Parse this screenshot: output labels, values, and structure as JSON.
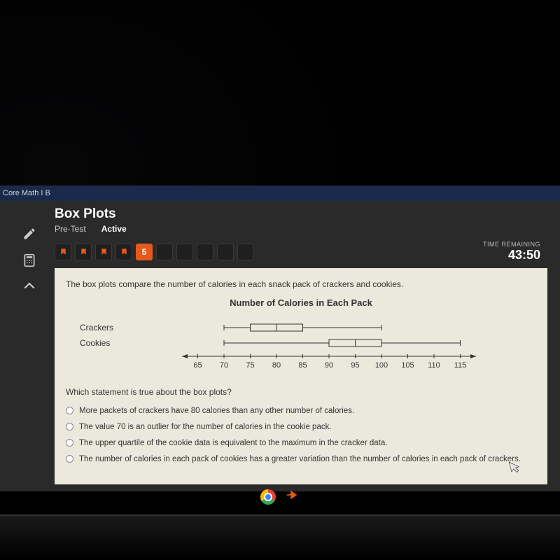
{
  "course": {
    "name": "Core Math I B"
  },
  "header": {
    "title": "Box Plots",
    "mode": "Pre-Test",
    "status": "Active"
  },
  "timer": {
    "label": "TIME REMAINING",
    "value": "43:50"
  },
  "progress": {
    "flagged": [
      1,
      2,
      3,
      4
    ],
    "current_index": 5,
    "total_visible": 10,
    "current_label": "5"
  },
  "question": {
    "intro": "The box plots compare the number of calories in each snack pack of crackers and cookies.",
    "chart_title": "Number of Calories in Each Pack",
    "prompt": "Which statement is true about the box plots?",
    "options": [
      "More packets of crackers have 80 calories than any other number of calories.",
      "The value 70 is an outlier for the number of calories in the cookie pack.",
      "The upper quartile of the cookie data is equivalent to the maximum in the cracker data.",
      "The number of calories in each pack of cookies has a greater variation than the number of calories in each pack of crackers."
    ]
  },
  "boxplots": {
    "axis_min": 62,
    "axis_max": 118,
    "ticks": [
      65,
      70,
      75,
      80,
      85,
      90,
      95,
      100,
      105,
      110,
      115
    ],
    "series": [
      {
        "label": "Crackers",
        "min": 70,
        "q1": 75,
        "median": 80,
        "q3": 85,
        "max": 100
      },
      {
        "label": "Cookies",
        "min": 70,
        "q1": 90,
        "median": 95,
        "q3": 100,
        "max": 115
      }
    ],
    "stroke_color": "#333333",
    "stroke_width": 1
  },
  "palette": {
    "panel_bg": "#ebe8dc",
    "app_bg": "#2a2a2a",
    "accent": "#e55a1b",
    "header_bar": "#1a2a4a"
  }
}
